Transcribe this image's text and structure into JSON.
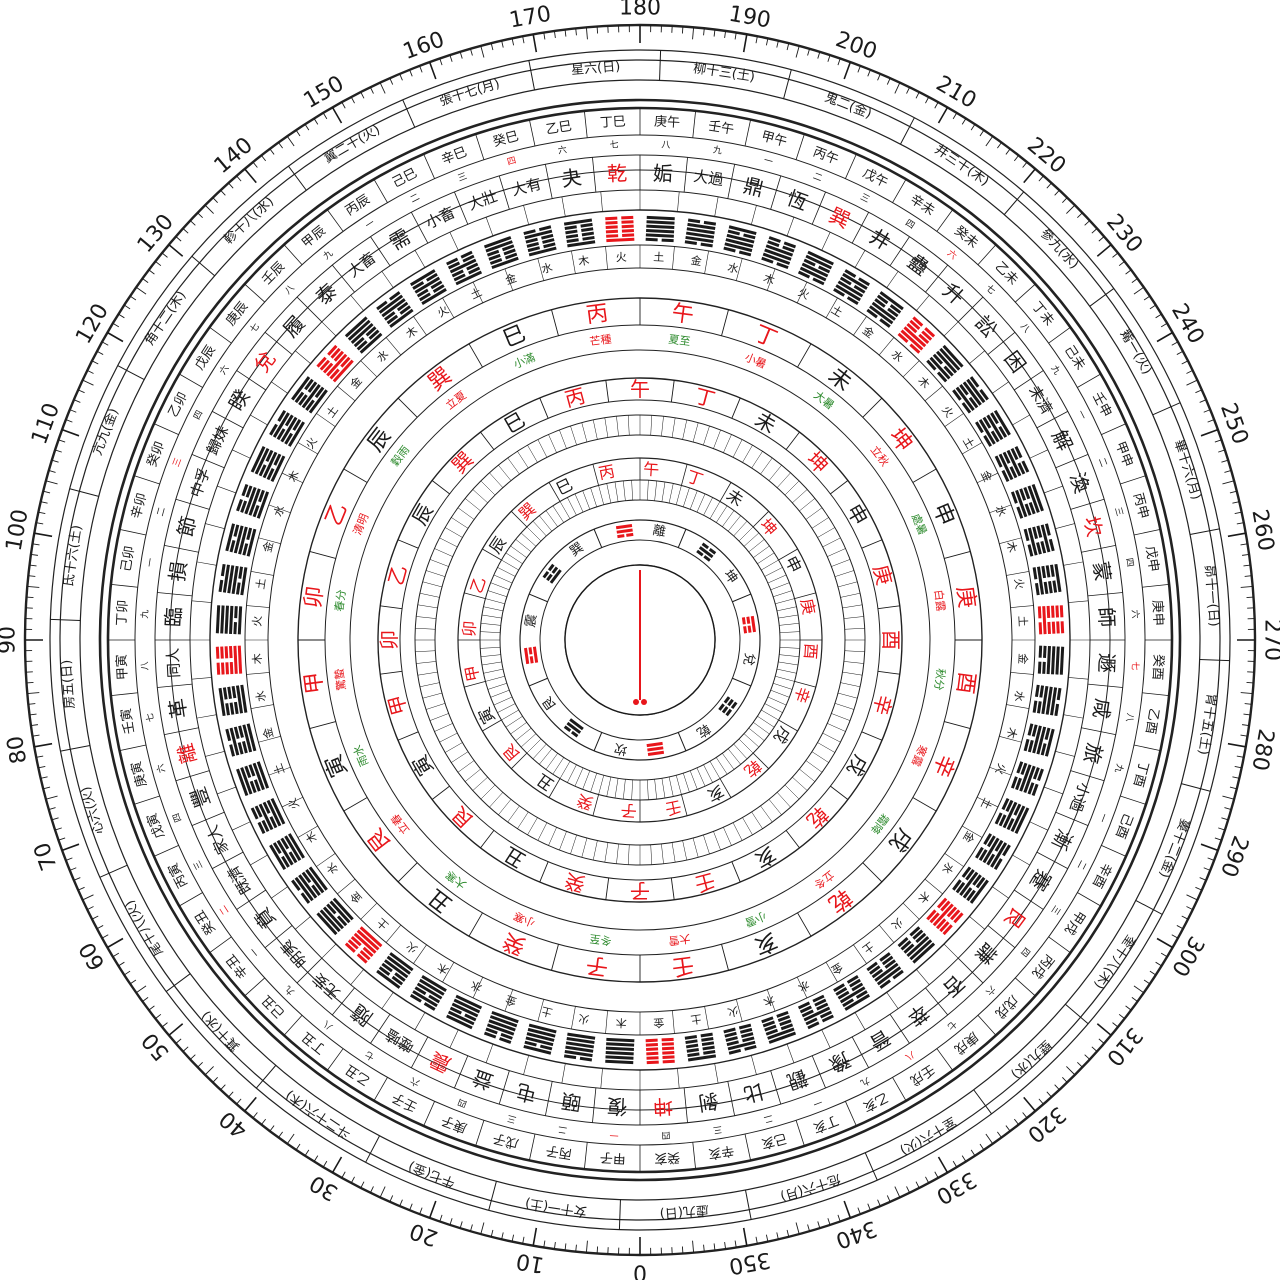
{
  "colors": {
    "ink": "#1a1a1a",
    "accent": "#e8161b",
    "green": "#2e8b2e",
    "bg": "#ffffff"
  },
  "outer_degrees": [
    "0",
    "10",
    "20",
    "30",
    "40",
    "50",
    "60",
    "70",
    "80",
    "90",
    "100",
    "110",
    "120",
    "130",
    "140",
    "150",
    "160",
    "170",
    "180",
    "190",
    "200",
    "210",
    "220",
    "230",
    "240",
    "250",
    "260",
    "270",
    "280",
    "290",
    "300",
    "310",
    "320",
    "330",
    "340",
    "350"
  ],
  "mansion_ring": [
    "女十一(土)",
    "牛七(金)",
    "斗二十六(木)",
    "箕十(水)",
    "尾十八(火)",
    "心六(火)",
    "房五(日)",
    "氐十六(土)",
    "亢九(金)",
    "角十二(木)",
    "軫十八(水)",
    "翼二十(火)",
    "張十七(月)",
    "星六(日)",
    "柳十三(土)",
    "鬼二(金)",
    "井三十(木)",
    "參九(水)",
    "觜一(火)",
    "畢十六(月)",
    "昴十一(日)",
    "胃十五(土)",
    "婁十二(金)",
    "奎十八(木)",
    "壁九(水)",
    "室十六(火)",
    "危十六(月)",
    "虛九(日)"
  ],
  "hexagram_ring": [
    "復",
    "頤",
    "屯",
    "益",
    "震",
    "噬嗑",
    "隨",
    "无妄",
    "明夷",
    "賁",
    "既濟",
    "家人",
    "豐",
    "離",
    "革",
    "同人",
    "臨",
    "損",
    "節",
    "中孚",
    "歸妹",
    "睽",
    "兌",
    "履",
    "泰",
    "大畜",
    "需",
    "小畜",
    "大壯",
    "大有",
    "夬",
    "乾",
    "姤",
    "大過",
    "鼎",
    "恆",
    "巽",
    "井",
    "蠱",
    "升",
    "訟",
    "困",
    "未濟",
    "解",
    "渙",
    "坎",
    "蒙",
    "師",
    "遯",
    "咸",
    "旅",
    "小過",
    "漸",
    "蹇",
    "艮",
    "謙",
    "否",
    "萃",
    "晉",
    "豫",
    "觀",
    "比",
    "剝",
    "坤"
  ],
  "hexagram_red": [
    "乾",
    "坤",
    "震",
    "巽",
    "坎",
    "離",
    "艮",
    "兌"
  ],
  "mountain_ring": [
    "子",
    "癸",
    "丑",
    "艮",
    "寅",
    "甲",
    "卯",
    "乙",
    "辰",
    "巽",
    "巳",
    "丙",
    "午",
    "丁",
    "未",
    "坤",
    "申",
    "庚",
    "酉",
    "辛",
    "戌",
    "乾",
    "亥",
    "壬"
  ],
  "mountain_red": [
    "子",
    "午",
    "卯",
    "酉",
    "乾",
    "坤",
    "艮",
    "巽",
    "甲",
    "庚",
    "壬",
    "丙",
    "乙",
    "辛",
    "丁",
    "癸"
  ],
  "solar_terms": [
    "冬至",
    "小寒",
    "大寒",
    "立春",
    "雨水",
    "驚蟄",
    "春分",
    "清明",
    "穀雨",
    "立夏",
    "小滿",
    "芒種",
    "夏至",
    "小暑",
    "大暑",
    "立秋",
    "處暑",
    "白露",
    "秋分",
    "寒露",
    "霜降",
    "立冬",
    "小雪",
    "大雪"
  ],
  "trigram_ring": [
    "坎",
    "艮",
    "震",
    "巽",
    "離",
    "坤",
    "兌",
    "乾"
  ],
  "stem_cycle": [
    "甲子",
    "丙子",
    "戊子",
    "庚子",
    "壬子",
    "乙丑",
    "丁丑",
    "己丑",
    "辛丑",
    "癸丑",
    "丙寅",
    "戊寅",
    "庚寅",
    "壬寅",
    "甲寅",
    "丁卯",
    "己卯",
    "辛卯",
    "癸卯",
    "乙卯",
    "戊辰",
    "庚辰",
    "壬辰",
    "甲辰",
    "丙辰",
    "己巳",
    "辛巳",
    "癸巳",
    "乙巳",
    "丁巳",
    "庚午",
    "壬午",
    "甲午",
    "丙午",
    "戊午",
    "辛未",
    "癸未",
    "乙未",
    "丁未",
    "己未",
    "壬申",
    "甲申",
    "丙申",
    "戊申",
    "庚申",
    "癸酉",
    "乙酉",
    "丁酉",
    "己酉",
    "辛酉",
    "甲戌",
    "丙戌",
    "戊戌",
    "庚戌",
    "壬戌",
    "乙亥",
    "丁亥",
    "己亥",
    "辛亥",
    "癸亥"
  ],
  "elements": [
    "木",
    "火",
    "土",
    "金",
    "水"
  ],
  "numbers": [
    "一",
    "二",
    "三",
    "四",
    "六",
    "七",
    "八",
    "九"
  ]
}
